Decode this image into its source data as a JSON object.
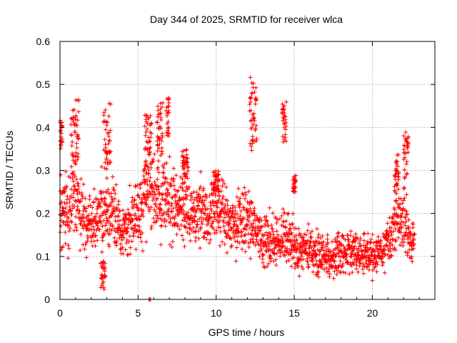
{
  "chart_data": {
    "type": "scatter",
    "title": "Day 344 of 2025, SRMTID for receiver wlca",
    "xlabel": "GPS time / hours",
    "ylabel": "SRMTID / TECUs",
    "xlim": [
      0,
      24
    ],
    "ylim": [
      0,
      0.6
    ],
    "x_ticks": [
      "0",
      "5",
      "10",
      "15",
      "20"
    ],
    "y_ticks": [
      "0",
      "0.1",
      "0.2",
      "0.3",
      "0.4",
      "0.5",
      "0.6"
    ],
    "grid": true,
    "marker": "plus",
    "color": "#ff0000",
    "trend": [
      [
        0.0,
        0.2
      ],
      [
        0.5,
        0.2
      ],
      [
        1.0,
        0.26
      ],
      [
        1.5,
        0.19
      ],
      [
        2.0,
        0.17
      ],
      [
        2.5,
        0.19
      ],
      [
        3.0,
        0.21
      ],
      [
        3.5,
        0.2
      ],
      [
        4.0,
        0.16
      ],
      [
        4.5,
        0.17
      ],
      [
        5.0,
        0.2
      ],
      [
        5.5,
        0.25
      ],
      [
        6.0,
        0.26
      ],
      [
        6.5,
        0.24
      ],
      [
        7.0,
        0.23
      ],
      [
        7.5,
        0.21
      ],
      [
        8.0,
        0.22
      ],
      [
        8.5,
        0.2
      ],
      [
        9.0,
        0.21
      ],
      [
        9.5,
        0.19
      ],
      [
        10.0,
        0.22
      ],
      [
        10.5,
        0.2
      ],
      [
        11.0,
        0.17
      ],
      [
        11.5,
        0.18
      ],
      [
        12.0,
        0.18
      ],
      [
        12.5,
        0.16
      ],
      [
        13.0,
        0.13
      ],
      [
        13.5,
        0.14
      ],
      [
        14.0,
        0.14
      ],
      [
        14.5,
        0.15
      ],
      [
        15.0,
        0.13
      ],
      [
        15.5,
        0.12
      ],
      [
        16.0,
        0.12
      ],
      [
        16.5,
        0.11
      ],
      [
        17.0,
        0.1
      ],
      [
        17.5,
        0.1
      ],
      [
        18.0,
        0.11
      ],
      [
        18.5,
        0.11
      ],
      [
        19.0,
        0.11
      ],
      [
        19.5,
        0.1
      ],
      [
        20.0,
        0.1
      ],
      [
        20.5,
        0.11
      ],
      [
        21.0,
        0.13
      ],
      [
        21.5,
        0.18
      ],
      [
        22.0,
        0.19
      ],
      [
        22.5,
        0.13
      ],
      [
        22.7,
        0.12
      ]
    ],
    "clusters": [
      {
        "x0": 0.0,
        "x1": 0.15,
        "y0": 0.35,
        "y1": 0.42
      },
      {
        "x0": 0.7,
        "x1": 1.2,
        "y0": 0.32,
        "y1": 0.47
      },
      {
        "x0": 2.6,
        "x1": 2.9,
        "y0": 0.02,
        "y1": 0.09
      },
      {
        "x0": 2.8,
        "x1": 3.3,
        "y0": 0.3,
        "y1": 0.46
      },
      {
        "x0": 5.4,
        "x1": 5.9,
        "y0": 0.3,
        "y1": 0.43
      },
      {
        "x0": 6.2,
        "x1": 6.6,
        "y0": 0.33,
        "y1": 0.46
      },
      {
        "x0": 6.8,
        "x1": 7.0,
        "y0": 0.38,
        "y1": 0.47
      },
      {
        "x0": 7.8,
        "x1": 8.2,
        "y0": 0.28,
        "y1": 0.35
      },
      {
        "x0": 9.8,
        "x1": 10.2,
        "y0": 0.25,
        "y1": 0.3
      },
      {
        "x0": 12.1,
        "x1": 12.6,
        "y0": 0.34,
        "y1": 0.52
      },
      {
        "x0": 14.2,
        "x1": 14.5,
        "y0": 0.36,
        "y1": 0.46
      },
      {
        "x0": 14.9,
        "x1": 15.1,
        "y0": 0.25,
        "y1": 0.29
      },
      {
        "x0": 21.4,
        "x1": 21.7,
        "y0": 0.25,
        "y1": 0.34
      },
      {
        "x0": 22.0,
        "x1": 22.3,
        "y0": 0.28,
        "y1": 0.4
      }
    ],
    "outliers": [
      [
        5.75,
        0.0
      ],
      [
        5.8,
        0.0
      ],
      [
        5.7,
        0.0
      ]
    ]
  }
}
